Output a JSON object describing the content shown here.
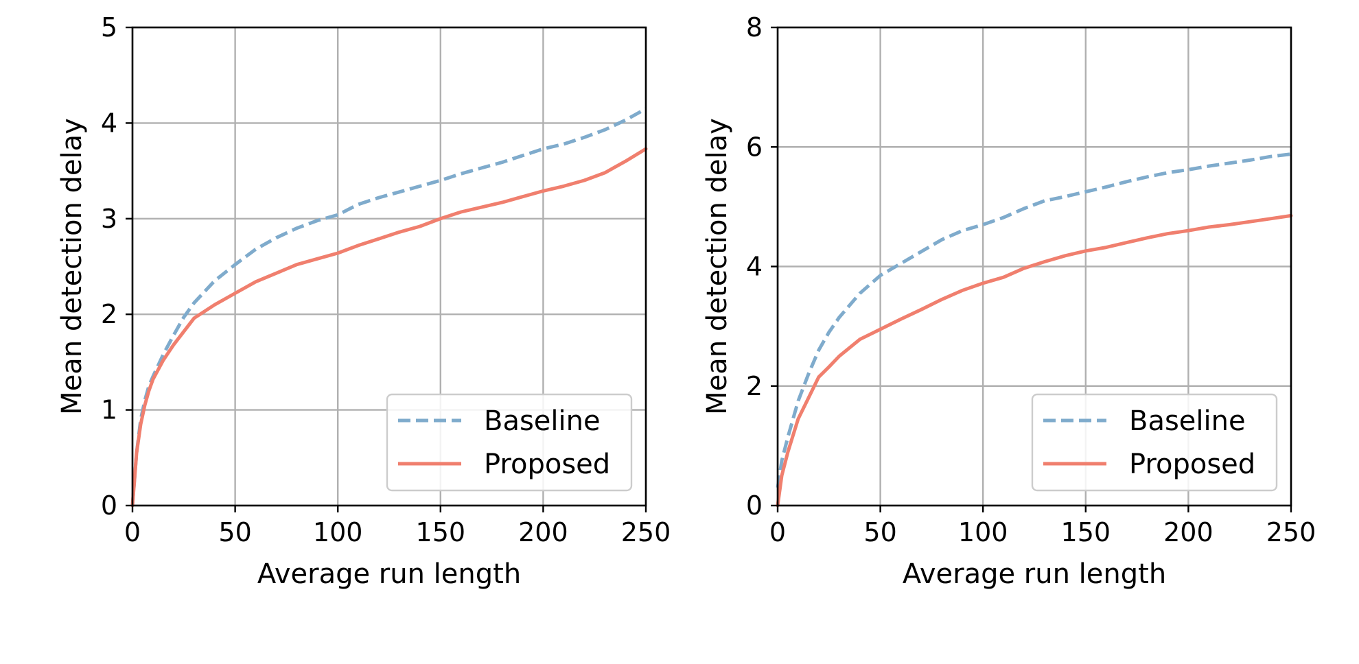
{
  "colors": {
    "baseline": "#7fabcc",
    "proposed": "#f07f6e",
    "grid": "#b0b0b0",
    "frame": "#000000"
  },
  "chart_data": [
    {
      "type": "line",
      "xlabel": "Average run length",
      "ylabel": "Mean detection delay",
      "xlim": [
        0,
        250
      ],
      "ylim": [
        0,
        5
      ],
      "xticks": [
        0,
        50,
        100,
        150,
        200,
        250
      ],
      "yticks": [
        0,
        1,
        2,
        3,
        4,
        5
      ],
      "xtick_labels": [
        "0",
        "50",
        "100",
        "150",
        "200",
        "250"
      ],
      "ytick_labels": [
        "0",
        "1",
        "2",
        "3",
        "4",
        "5"
      ],
      "grid": true,
      "legend": "lower-right",
      "series": [
        {
          "name": "Baseline",
          "style": "dashed",
          "x": [
            0,
            2,
            4,
            6,
            8,
            10,
            15,
            20,
            25,
            30,
            40,
            50,
            60,
            70,
            80,
            90,
            100,
            110,
            120,
            130,
            140,
            150,
            160,
            170,
            180,
            190,
            200,
            210,
            220,
            230,
            240,
            250
          ],
          "y": [
            0,
            0.55,
            0.9,
            1.1,
            1.25,
            1.35,
            1.58,
            1.78,
            1.97,
            2.12,
            2.35,
            2.52,
            2.68,
            2.8,
            2.9,
            2.98,
            3.04,
            3.15,
            3.22,
            3.28,
            3.34,
            3.4,
            3.47,
            3.53,
            3.59,
            3.66,
            3.73,
            3.78,
            3.85,
            3.93,
            4.03,
            4.15
          ]
        },
        {
          "name": "Proposed",
          "style": "solid",
          "x": [
            0,
            2,
            4,
            6,
            8,
            10,
            15,
            20,
            25,
            30,
            40,
            50,
            60,
            70,
            80,
            90,
            100,
            110,
            120,
            130,
            140,
            150,
            160,
            170,
            180,
            190,
            200,
            210,
            220,
            230,
            240,
            250
          ],
          "y": [
            0,
            0.55,
            0.85,
            1.05,
            1.2,
            1.32,
            1.52,
            1.68,
            1.82,
            1.96,
            2.1,
            2.22,
            2.34,
            2.43,
            2.52,
            2.58,
            2.64,
            2.72,
            2.79,
            2.86,
            2.92,
            3.0,
            3.07,
            3.12,
            3.17,
            3.23,
            3.29,
            3.34,
            3.4,
            3.48,
            3.6,
            3.73
          ]
        }
      ]
    },
    {
      "type": "line",
      "xlabel": "Average run length",
      "ylabel": "Mean detection delay",
      "xlim": [
        0,
        250
      ],
      "ylim": [
        0,
        8
      ],
      "xticks": [
        0,
        50,
        100,
        150,
        200,
        250
      ],
      "yticks": [
        0,
        2,
        4,
        6,
        8
      ],
      "xtick_labels": [
        "0",
        "50",
        "100",
        "150",
        "200",
        "250"
      ],
      "ytick_labels": [
        "0",
        "2",
        "4",
        "6",
        "8"
      ],
      "grid": true,
      "legend": "lower-right",
      "series": [
        {
          "name": "Baseline",
          "style": "dashed",
          "x": [
            0,
            2,
            5,
            10,
            15,
            20,
            25,
            30,
            40,
            50,
            60,
            70,
            80,
            90,
            100,
            110,
            120,
            130,
            140,
            150,
            160,
            170,
            180,
            190,
            200,
            210,
            220,
            230,
            240,
            250
          ],
          "y": [
            0.3,
            0.75,
            1.15,
            1.75,
            2.2,
            2.6,
            2.9,
            3.15,
            3.55,
            3.85,
            4.05,
            4.25,
            4.45,
            4.6,
            4.7,
            4.82,
            4.97,
            5.1,
            5.17,
            5.25,
            5.33,
            5.42,
            5.5,
            5.57,
            5.62,
            5.68,
            5.73,
            5.78,
            5.84,
            5.88
          ]
        },
        {
          "name": "Proposed",
          "style": "solid",
          "x": [
            0,
            2,
            5,
            10,
            15,
            20,
            25,
            30,
            40,
            50,
            60,
            70,
            80,
            90,
            100,
            110,
            120,
            130,
            140,
            150,
            160,
            170,
            180,
            190,
            200,
            210,
            220,
            230,
            240,
            250
          ],
          "y": [
            0,
            0.5,
            0.9,
            1.45,
            1.8,
            2.15,
            2.32,
            2.5,
            2.78,
            2.95,
            3.12,
            3.28,
            3.45,
            3.6,
            3.72,
            3.82,
            3.97,
            4.08,
            4.18,
            4.26,
            4.32,
            4.4,
            4.48,
            4.55,
            4.6,
            4.66,
            4.7,
            4.75,
            4.8,
            4.85
          ]
        }
      ]
    }
  ]
}
